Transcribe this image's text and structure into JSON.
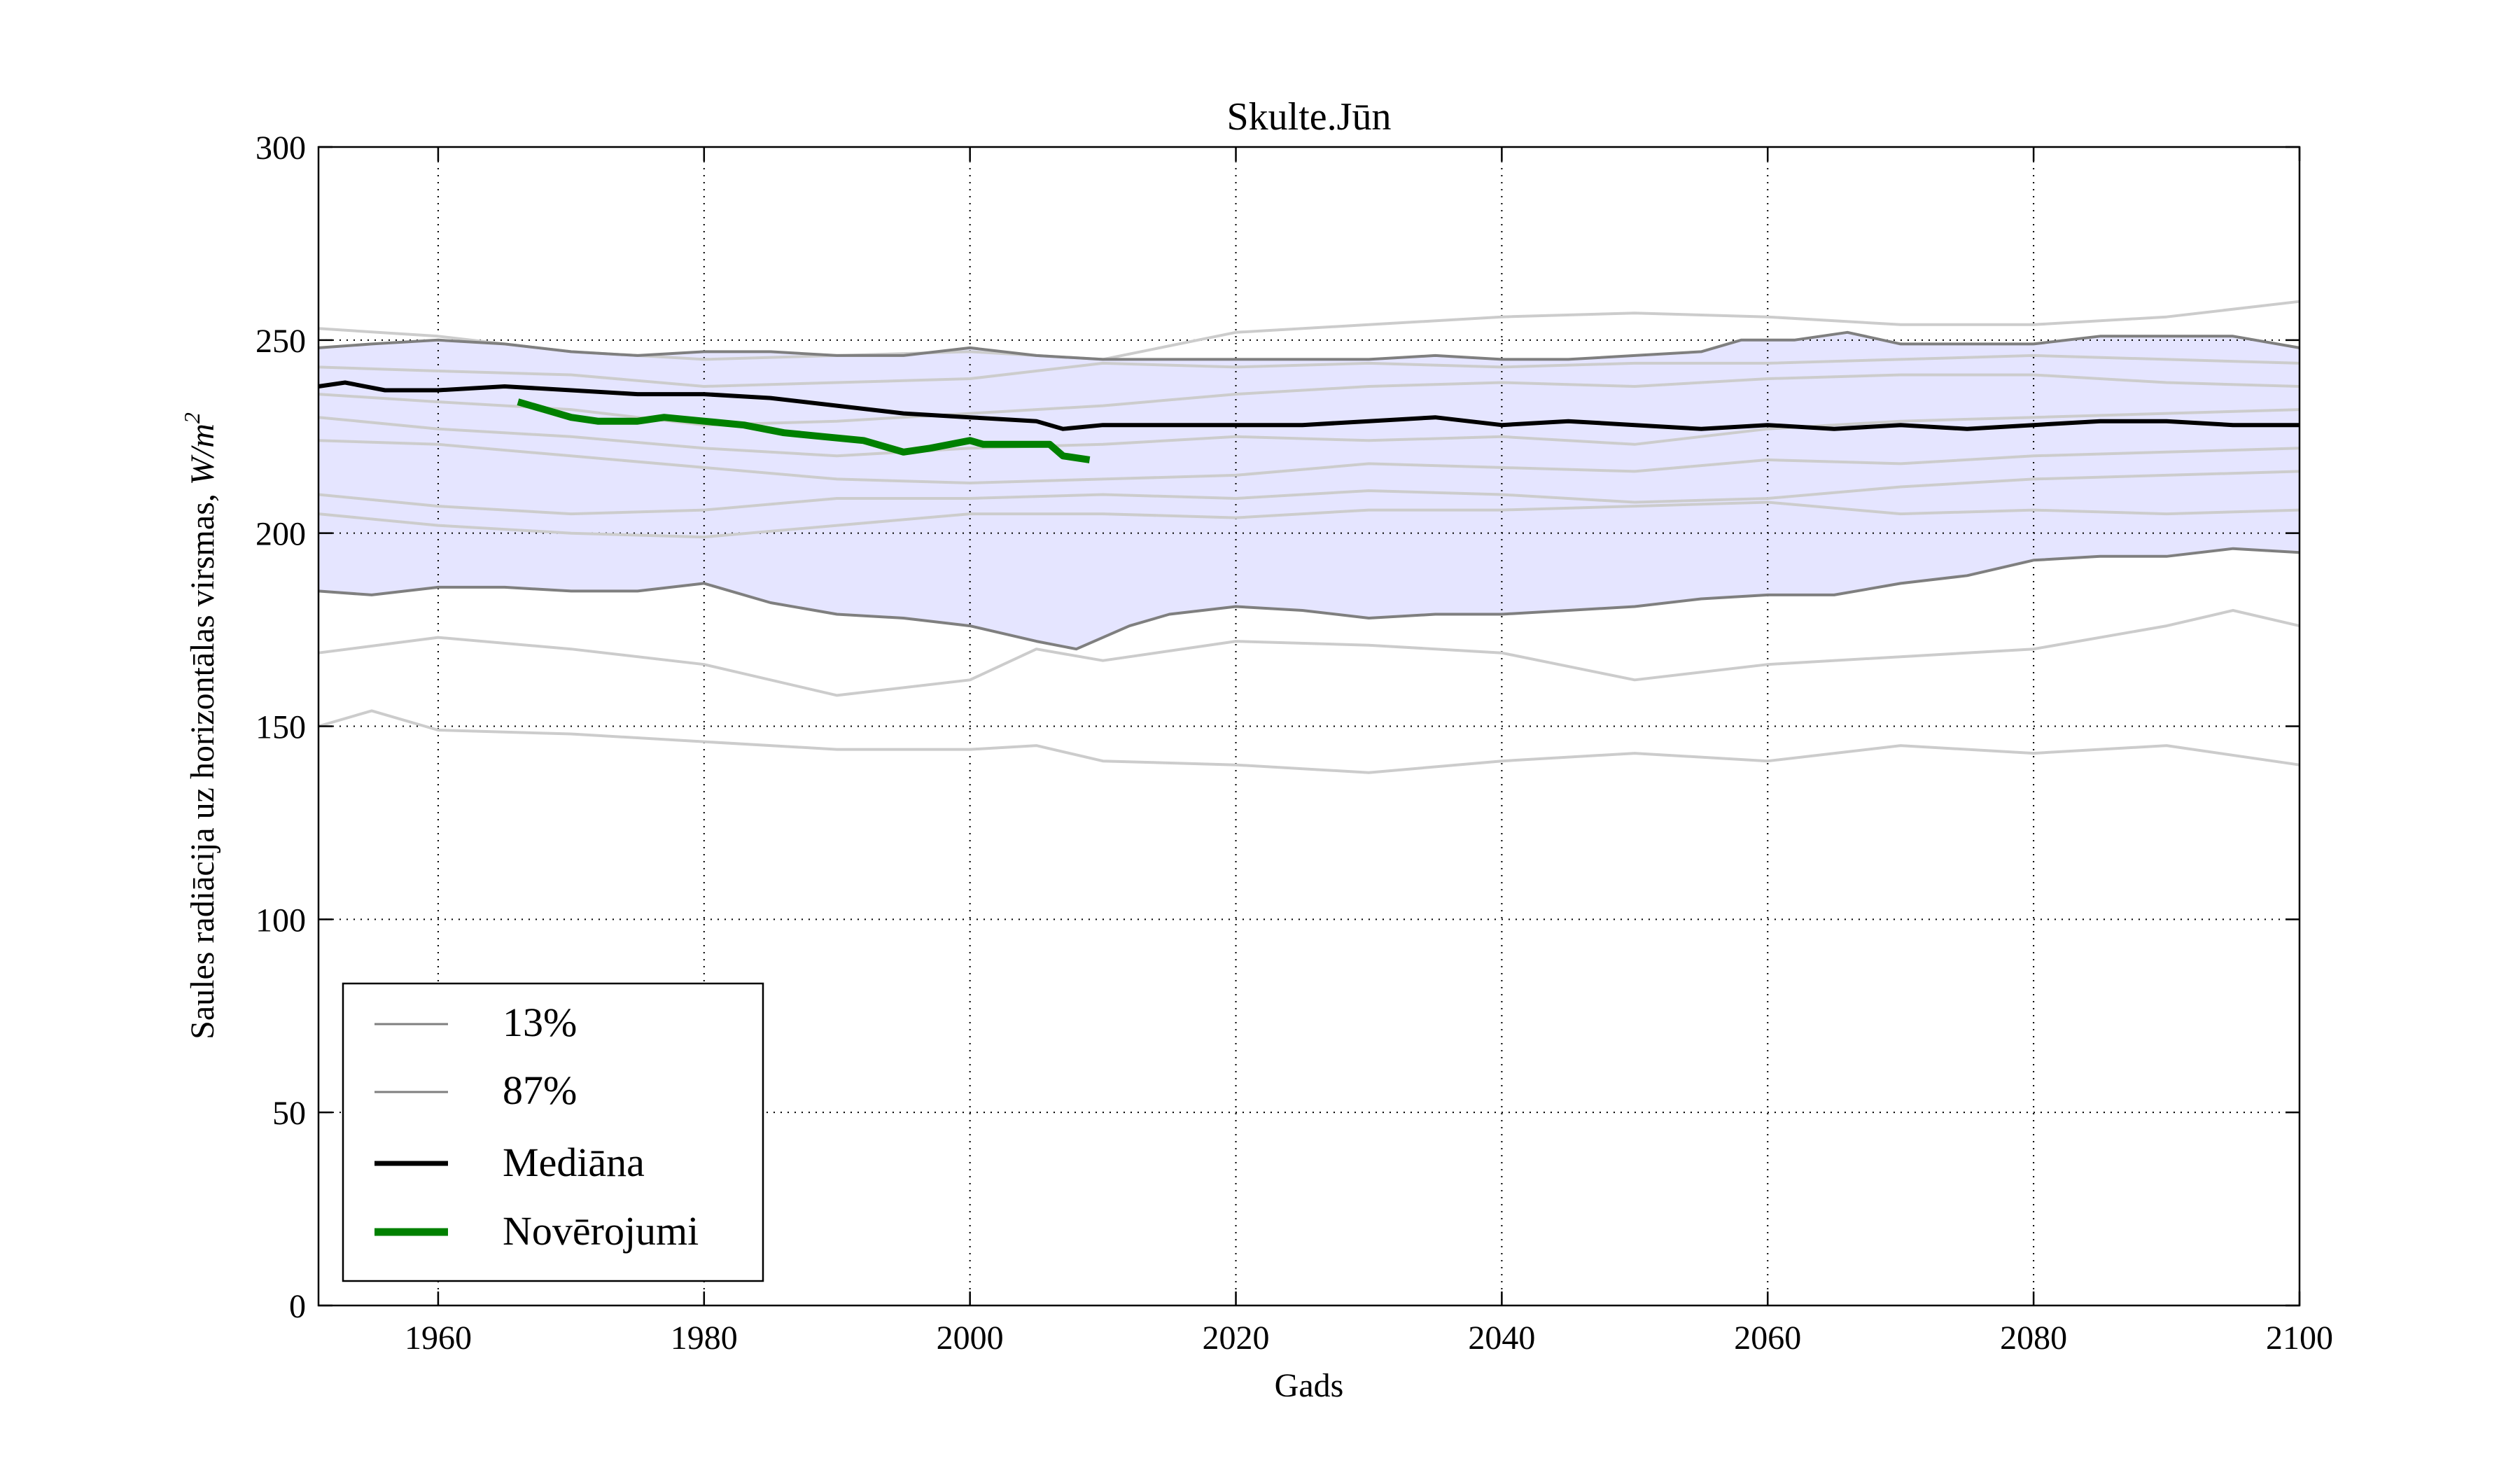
{
  "chart_data": {
    "type": "line",
    "title": "Skulte.Jūn",
    "xlabel": "Gads",
    "ylabel": "Saules radiācija uz horizontālas virsmas, W/m²",
    "ylabel_text": "Saules radiācija uz horizontālas virsmas, ",
    "ylabel_unit": "W/m",
    "ylabel_unit_exp": "2",
    "xlim": [
      1951,
      2100
    ],
    "ylim": [
      0,
      300
    ],
    "xticks": [
      1960,
      1980,
      2000,
      2020,
      2040,
      2060,
      2080,
      2100
    ],
    "yticks": [
      0,
      50,
      100,
      150,
      200,
      250,
      300
    ],
    "grid": true,
    "legend_position": "lower-left",
    "legend": [
      {
        "label": "13%",
        "color": "#7f7f7f"
      },
      {
        "label": "87%",
        "color": "#7f7f7f"
      },
      {
        "label": "Mediāna",
        "color": "#000000"
      },
      {
        "label": "Novērojumi",
        "color": "#008000"
      }
    ],
    "colors": {
      "band_fill": "#e5e5ff",
      "ensemble": "#cccccc",
      "percentile": "#7f7f7f",
      "median": "#000000",
      "observations": "#008000"
    },
    "band": {
      "name": "13% – 87%",
      "lower": [
        [
          1951,
          185
        ],
        [
          1955,
          184
        ],
        [
          1960,
          186
        ],
        [
          1965,
          186
        ],
        [
          1970,
          185
        ],
        [
          1975,
          185
        ],
        [
          1980,
          187
        ],
        [
          1985,
          182
        ],
        [
          1990,
          179
        ],
        [
          1995,
          178
        ],
        [
          2000,
          176
        ],
        [
          2005,
          172
        ],
        [
          2008,
          170
        ],
        [
          2012,
          176
        ],
        [
          2015,
          179
        ],
        [
          2020,
          181
        ],
        [
          2025,
          180
        ],
        [
          2030,
          178
        ],
        [
          2035,
          179
        ],
        [
          2040,
          179
        ],
        [
          2045,
          180
        ],
        [
          2050,
          181
        ],
        [
          2055,
          183
        ],
        [
          2060,
          184
        ],
        [
          2065,
          184
        ],
        [
          2070,
          187
        ],
        [
          2075,
          189
        ],
        [
          2080,
          193
        ],
        [
          2085,
          194
        ],
        [
          2090,
          194
        ],
        [
          2095,
          196
        ],
        [
          2100,
          195
        ]
      ],
      "upper": [
        [
          1951,
          248
        ],
        [
          1955,
          249
        ],
        [
          1960,
          250
        ],
        [
          1965,
          249
        ],
        [
          1970,
          247
        ],
        [
          1975,
          246
        ],
        [
          1980,
          247
        ],
        [
          1985,
          247
        ],
        [
          1990,
          246
        ],
        [
          1995,
          246
        ],
        [
          2000,
          248
        ],
        [
          2005,
          246
        ],
        [
          2010,
          245
        ],
        [
          2015,
          245
        ],
        [
          2020,
          245
        ],
        [
          2025,
          245
        ],
        [
          2030,
          245
        ],
        [
          2035,
          246
        ],
        [
          2040,
          245
        ],
        [
          2045,
          245
        ],
        [
          2050,
          246
        ],
        [
          2055,
          247
        ],
        [
          2058,
          250
        ],
        [
          2062,
          250
        ],
        [
          2066,
          252
        ],
        [
          2070,
          249
        ],
        [
          2075,
          249
        ],
        [
          2080,
          249
        ],
        [
          2085,
          251
        ],
        [
          2090,
          251
        ],
        [
          2095,
          251
        ],
        [
          2100,
          248
        ]
      ]
    },
    "ensemble": [
      [
        [
          1951,
          253
        ],
        [
          1960,
          251
        ],
        [
          1970,
          247
        ],
        [
          1980,
          245
        ],
        [
          1990,
          246
        ],
        [
          2000,
          247
        ],
        [
          2010,
          245
        ],
        [
          2020,
          252
        ],
        [
          2030,
          254
        ],
        [
          2040,
          256
        ],
        [
          2050,
          257
        ],
        [
          2060,
          256
        ],
        [
          2070,
          254
        ],
        [
          2080,
          254
        ],
        [
          2090,
          256
        ],
        [
          2100,
          260
        ]
      ],
      [
        [
          1951,
          243
        ],
        [
          1960,
          242
        ],
        [
          1970,
          241
        ],
        [
          1980,
          238
        ],
        [
          1990,
          239
        ],
        [
          2000,
          240
        ],
        [
          2010,
          244
        ],
        [
          2020,
          243
        ],
        [
          2030,
          244
        ],
        [
          2040,
          243
        ],
        [
          2050,
          244
        ],
        [
          2060,
          244
        ],
        [
          2070,
          245
        ],
        [
          2080,
          246
        ],
        [
          2090,
          245
        ],
        [
          2100,
          244
        ]
      ],
      [
        [
          1951,
          236
        ],
        [
          1960,
          234
        ],
        [
          1970,
          232
        ],
        [
          1980,
          228
        ],
        [
          1990,
          229
        ],
        [
          2000,
          231
        ],
        [
          2010,
          233
        ],
        [
          2020,
          236
        ],
        [
          2030,
          238
        ],
        [
          2040,
          239
        ],
        [
          2050,
          238
        ],
        [
          2060,
          240
        ],
        [
          2070,
          241
        ],
        [
          2080,
          241
        ],
        [
          2090,
          239
        ],
        [
          2100,
          238
        ]
      ],
      [
        [
          1951,
          230
        ],
        [
          1960,
          227
        ],
        [
          1970,
          225
        ],
        [
          1980,
          222
        ],
        [
          1990,
          220
        ],
        [
          2000,
          222
        ],
        [
          2010,
          223
        ],
        [
          2020,
          225
        ],
        [
          2030,
          224
        ],
        [
          2040,
          225
        ],
        [
          2050,
          223
        ],
        [
          2060,
          227
        ],
        [
          2070,
          229
        ],
        [
          2080,
          230
        ],
        [
          2090,
          231
        ],
        [
          2100,
          232
        ]
      ],
      [
        [
          1951,
          224
        ],
        [
          1960,
          223
        ],
        [
          1970,
          220
        ],
        [
          1980,
          217
        ],
        [
          1990,
          214
        ],
        [
          2000,
          213
        ],
        [
          2010,
          214
        ],
        [
          2020,
          215
        ],
        [
          2030,
          218
        ],
        [
          2040,
          217
        ],
        [
          2050,
          216
        ],
        [
          2060,
          219
        ],
        [
          2070,
          218
        ],
        [
          2080,
          220
        ],
        [
          2090,
          221
        ],
        [
          2100,
          222
        ]
      ],
      [
        [
          1951,
          210
        ],
        [
          1960,
          207
        ],
        [
          1970,
          205
        ],
        [
          1980,
          206
        ],
        [
          1990,
          209
        ],
        [
          2000,
          209
        ],
        [
          2010,
          210
        ],
        [
          2020,
          209
        ],
        [
          2030,
          211
        ],
        [
          2040,
          210
        ],
        [
          2050,
          208
        ],
        [
          2060,
          209
        ],
        [
          2070,
          212
        ],
        [
          2080,
          214
        ],
        [
          2090,
          215
        ],
        [
          2100,
          216
        ]
      ],
      [
        [
          1951,
          205
        ],
        [
          1960,
          202
        ],
        [
          1970,
          200
        ],
        [
          1980,
          199
        ],
        [
          1990,
          202
        ],
        [
          2000,
          205
        ],
        [
          2010,
          205
        ],
        [
          2020,
          204
        ],
        [
          2030,
          206
        ],
        [
          2040,
          206
        ],
        [
          2050,
          207
        ],
        [
          2060,
          208
        ],
        [
          2070,
          205
        ],
        [
          2080,
          206
        ],
        [
          2090,
          205
        ],
        [
          2100,
          206
        ]
      ],
      [
        [
          1951,
          169
        ],
        [
          1960,
          173
        ],
        [
          1970,
          170
        ],
        [
          1980,
          166
        ],
        [
          1990,
          158
        ],
        [
          2000,
          162
        ],
        [
          2005,
          170
        ],
        [
          2010,
          167
        ],
        [
          2020,
          172
        ],
        [
          2030,
          171
        ],
        [
          2040,
          169
        ],
        [
          2050,
          162
        ],
        [
          2060,
          166
        ],
        [
          2070,
          168
        ],
        [
          2080,
          170
        ],
        [
          2090,
          176
        ],
        [
          2095,
          180
        ],
        [
          2100,
          176
        ]
      ],
      [
        [
          1951,
          150
        ],
        [
          1955,
          154
        ],
        [
          1960,
          149
        ],
        [
          1970,
          148
        ],
        [
          1980,
          146
        ],
        [
          1990,
          144
        ],
        [
          2000,
          144
        ],
        [
          2005,
          145
        ],
        [
          2010,
          141
        ],
        [
          2020,
          140
        ],
        [
          2030,
          138
        ],
        [
          2040,
          141
        ],
        [
          2050,
          143
        ],
        [
          2060,
          141
        ],
        [
          2070,
          145
        ],
        [
          2080,
          143
        ],
        [
          2090,
          145
        ],
        [
          2100,
          140
        ]
      ]
    ],
    "series": [
      {
        "name": "13%",
        "values": [
          [
            1951,
            185
          ],
          [
            1955,
            184
          ],
          [
            1960,
            186
          ],
          [
            1965,
            186
          ],
          [
            1970,
            185
          ],
          [
            1975,
            185
          ],
          [
            1980,
            187
          ],
          [
            1985,
            182
          ],
          [
            1990,
            179
          ],
          [
            1995,
            178
          ],
          [
            2000,
            176
          ],
          [
            2005,
            172
          ],
          [
            2008,
            170
          ],
          [
            2012,
            176
          ],
          [
            2015,
            179
          ],
          [
            2020,
            181
          ],
          [
            2025,
            180
          ],
          [
            2030,
            178
          ],
          [
            2035,
            179
          ],
          [
            2040,
            179
          ],
          [
            2045,
            180
          ],
          [
            2050,
            181
          ],
          [
            2055,
            183
          ],
          [
            2060,
            184
          ],
          [
            2065,
            184
          ],
          [
            2070,
            187
          ],
          [
            2075,
            189
          ],
          [
            2080,
            193
          ],
          [
            2085,
            194
          ],
          [
            2090,
            194
          ],
          [
            2095,
            196
          ],
          [
            2100,
            195
          ]
        ]
      },
      {
        "name": "87%",
        "values": [
          [
            1951,
            248
          ],
          [
            1955,
            249
          ],
          [
            1960,
            250
          ],
          [
            1965,
            249
          ],
          [
            1970,
            247
          ],
          [
            1975,
            246
          ],
          [
            1980,
            247
          ],
          [
            1985,
            247
          ],
          [
            1990,
            246
          ],
          [
            1995,
            246
          ],
          [
            2000,
            248
          ],
          [
            2005,
            246
          ],
          [
            2010,
            245
          ],
          [
            2015,
            245
          ],
          [
            2020,
            245
          ],
          [
            2025,
            245
          ],
          [
            2030,
            245
          ],
          [
            2035,
            246
          ],
          [
            2040,
            245
          ],
          [
            2045,
            245
          ],
          [
            2050,
            246
          ],
          [
            2055,
            247
          ],
          [
            2058,
            250
          ],
          [
            2062,
            250
          ],
          [
            2066,
            252
          ],
          [
            2070,
            249
          ],
          [
            2075,
            249
          ],
          [
            2080,
            249
          ],
          [
            2085,
            251
          ],
          [
            2090,
            251
          ],
          [
            2095,
            251
          ],
          [
            2100,
            248
          ]
        ]
      },
      {
        "name": "Mediāna",
        "values": [
          [
            1951,
            238
          ],
          [
            1953,
            239
          ],
          [
            1956,
            237
          ],
          [
            1960,
            237
          ],
          [
            1965,
            238
          ],
          [
            1970,
            237
          ],
          [
            1975,
            236
          ],
          [
            1980,
            236
          ],
          [
            1985,
            235
          ],
          [
            1990,
            233
          ],
          [
            1995,
            231
          ],
          [
            2000,
            230
          ],
          [
            2005,
            229
          ],
          [
            2007,
            227
          ],
          [
            2010,
            228
          ],
          [
            2015,
            228
          ],
          [
            2020,
            228
          ],
          [
            2025,
            228
          ],
          [
            2030,
            229
          ],
          [
            2035,
            230
          ],
          [
            2040,
            228
          ],
          [
            2045,
            229
          ],
          [
            2050,
            228
          ],
          [
            2055,
            227
          ],
          [
            2060,
            228
          ],
          [
            2065,
            227
          ],
          [
            2070,
            228
          ],
          [
            2075,
            227
          ],
          [
            2080,
            228
          ],
          [
            2085,
            229
          ],
          [
            2090,
            229
          ],
          [
            2095,
            228
          ],
          [
            2100,
            228
          ]
        ]
      },
      {
        "name": "Novērojumi",
        "values": [
          [
            1966,
            234
          ],
          [
            1968,
            232
          ],
          [
            1970,
            230
          ],
          [
            1972,
            229
          ],
          [
            1975,
            229
          ],
          [
            1977,
            230
          ],
          [
            1980,
            229
          ],
          [
            1983,
            228
          ],
          [
            1986,
            226
          ],
          [
            1989,
            225
          ],
          [
            1992,
            224
          ],
          [
            1994,
            222
          ],
          [
            1995,
            221
          ],
          [
            1997,
            222
          ],
          [
            2000,
            224
          ],
          [
            2001,
            223
          ],
          [
            2003,
            223
          ],
          [
            2006,
            223
          ],
          [
            2007,
            220
          ],
          [
            2009,
            219
          ]
        ]
      }
    ]
  }
}
